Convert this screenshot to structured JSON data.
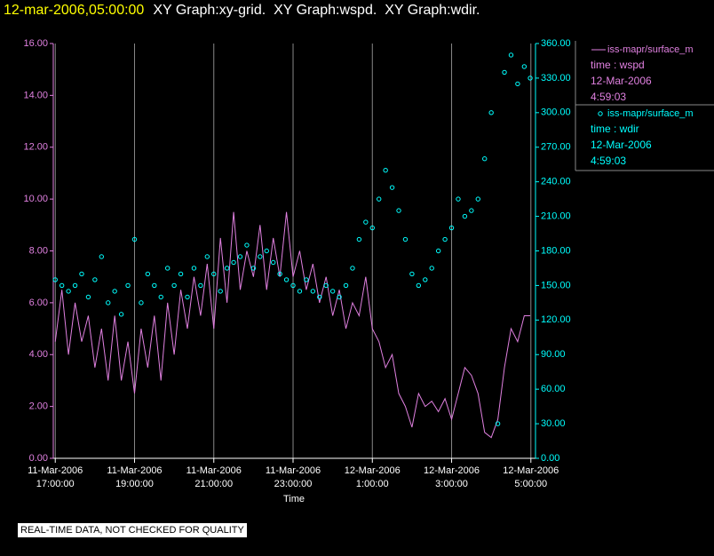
{
  "chart_data": {
    "type": "line-scatter",
    "timestamp": "12-mar-2006,05:00:00",
    "title": "XY Graph:xy-grid.  XY Graph:wspd.  XY Graph:wdir.",
    "x_label": "Time",
    "footnote": "REAL-TIME DATA, NOT CHECKED FOR QUALITY",
    "grid": true,
    "legend_position": "right",
    "xlim": [
      "2006-03-11T16:57:00",
      "2006-03-12T05:07:00"
    ],
    "xticks": [
      {
        "value": "2006-03-11T17:00:00",
        "label": "11-Mar-2006\n17:00:00"
      },
      {
        "value": "2006-03-11T19:00:00",
        "label": "11-Mar-2006\n19:00:00"
      },
      {
        "value": "2006-03-11T21:00:00",
        "label": "11-Mar-2006\n21:00:00"
      },
      {
        "value": "2006-03-11T23:00:00",
        "label": "11-Mar-2006\n23:00:00"
      },
      {
        "value": "2006-03-12T01:00:00",
        "label": "12-Mar-2006\n1:00:00"
      },
      {
        "value": "2006-03-12T03:00:00",
        "label": "12-Mar-2006\n3:00:00"
      },
      {
        "value": "2006-03-12T05:00:00",
        "label": "12-Mar-2006\n5:00:00"
      }
    ],
    "ylim": [
      0,
      16
    ],
    "yticks": [
      {
        "value": 0,
        "label": "0.00"
      },
      {
        "value": 2,
        "label": "2.00"
      },
      {
        "value": 4,
        "label": "4.00"
      },
      {
        "value": 6,
        "label": "6.00"
      },
      {
        "value": 8,
        "label": "8.00"
      },
      {
        "value": 10,
        "label": "10.00"
      },
      {
        "value": 12,
        "label": "12.00"
      },
      {
        "value": 14,
        "label": "14.00"
      },
      {
        "value": 16,
        "label": "16.00"
      }
    ],
    "y2lim": [
      0,
      360
    ],
    "y2ticks": [
      {
        "value": 0,
        "label": "0.00"
      },
      {
        "value": 30,
        "label": "30.00"
      },
      {
        "value": 60,
        "label": "60.00"
      },
      {
        "value": 90,
        "label": "90.00"
      },
      {
        "value": 120,
        "label": "120.00"
      },
      {
        "value": 150,
        "label": "150.00"
      },
      {
        "value": 180,
        "label": "180.00"
      },
      {
        "value": 210,
        "label": "210.00"
      },
      {
        "value": 240,
        "label": "240.00"
      },
      {
        "value": 270,
        "label": "270.00"
      },
      {
        "value": 300,
        "label": "300.00"
      },
      {
        "value": 330,
        "label": "330.00"
      },
      {
        "value": 360,
        "label": "360.00"
      }
    ],
    "x": [
      "2006-03-11T17:00:00",
      "2006-03-11T17:10:00",
      "2006-03-11T17:20:00",
      "2006-03-11T17:30:00",
      "2006-03-11T17:40:00",
      "2006-03-11T17:50:00",
      "2006-03-11T18:00:00",
      "2006-03-11T18:10:00",
      "2006-03-11T18:20:00",
      "2006-03-11T18:30:00",
      "2006-03-11T18:40:00",
      "2006-03-11T18:50:00",
      "2006-03-11T19:00:00",
      "2006-03-11T19:10:00",
      "2006-03-11T19:20:00",
      "2006-03-11T19:30:00",
      "2006-03-11T19:40:00",
      "2006-03-11T19:50:00",
      "2006-03-11T20:00:00",
      "2006-03-11T20:10:00",
      "2006-03-11T20:20:00",
      "2006-03-11T20:30:00",
      "2006-03-11T20:40:00",
      "2006-03-11T20:50:00",
      "2006-03-11T21:00:00",
      "2006-03-11T21:10:00",
      "2006-03-11T21:20:00",
      "2006-03-11T21:30:00",
      "2006-03-11T21:40:00",
      "2006-03-11T21:50:00",
      "2006-03-11T22:00:00",
      "2006-03-11T22:10:00",
      "2006-03-11T22:20:00",
      "2006-03-11T22:30:00",
      "2006-03-11T22:40:00",
      "2006-03-11T22:50:00",
      "2006-03-11T23:00:00",
      "2006-03-11T23:10:00",
      "2006-03-11T23:20:00",
      "2006-03-11T23:30:00",
      "2006-03-11T23:40:00",
      "2006-03-11T23:50:00",
      "2006-03-12T00:00:00",
      "2006-03-12T00:10:00",
      "2006-03-12T00:20:00",
      "2006-03-12T00:30:00",
      "2006-03-12T00:40:00",
      "2006-03-12T00:50:00",
      "2006-03-12T01:00:00",
      "2006-03-12T01:10:00",
      "2006-03-12T01:20:00",
      "2006-03-12T01:30:00",
      "2006-03-12T01:40:00",
      "2006-03-12T01:50:00",
      "2006-03-12T02:00:00",
      "2006-03-12T02:10:00",
      "2006-03-12T02:20:00",
      "2006-03-12T02:30:00",
      "2006-03-12T02:40:00",
      "2006-03-12T02:50:00",
      "2006-03-12T03:00:00",
      "2006-03-12T03:10:00",
      "2006-03-12T03:20:00",
      "2006-03-12T03:30:00",
      "2006-03-12T03:40:00",
      "2006-03-12T03:50:00",
      "2006-03-12T04:00:00",
      "2006-03-12T04:10:00",
      "2006-03-12T04:20:00",
      "2006-03-12T04:30:00",
      "2006-03-12T04:40:00",
      "2006-03-12T04:50:00",
      "2006-03-12T04:59:00"
    ],
    "series": [
      {
        "name": "iss-mapr/surface_m",
        "legend_lines": [
          "time : wspd",
          "12-Mar-2006",
          "4:59:03"
        ],
        "color": "#e080e0",
        "style": "line",
        "values": [
          4.5,
          6.5,
          4.0,
          6.0,
          4.5,
          5.5,
          3.5,
          5.0,
          3.0,
          5.5,
          3.0,
          4.5,
          2.5,
          5.0,
          3.5,
          5.5,
          3.0,
          6.0,
          4.0,
          6.5,
          5.0,
          7.0,
          5.5,
          7.5,
          5.0,
          8.5,
          6.0,
          9.5,
          6.5,
          8.0,
          7.0,
          9.0,
          6.5,
          8.5,
          7.0,
          9.5,
          7.0,
          8.0,
          6.5,
          7.5,
          6.0,
          7.0,
          5.5,
          6.5,
          5.0,
          6.0,
          5.5,
          7.0,
          5.0,
          4.5,
          3.5,
          4.0,
          2.5,
          2.0,
          1.2,
          2.5,
          2.0,
          2.2,
          1.8,
          2.3,
          1.5,
          2.5,
          3.5,
          3.2,
          2.5,
          1.0,
          0.8,
          1.5,
          3.5,
          5.0,
          4.5,
          5.5,
          5.5
        ]
      },
      {
        "name": "iss-mapr/surface_m",
        "legend_lines": [
          "time : wdir",
          "12-Mar-2006",
          "4:59:03"
        ],
        "color": "#00ffff",
        "style": "scatter",
        "axis": "y2",
        "values": [
          155,
          150,
          145,
          150,
          160,
          140,
          155,
          175,
          135,
          145,
          125,
          150,
          190,
          135,
          160,
          150,
          140,
          165,
          150,
          160,
          140,
          165,
          150,
          175,
          160,
          145,
          165,
          170,
          175,
          185,
          165,
          175,
          180,
          170,
          160,
          155,
          150,
          145,
          155,
          145,
          140,
          150,
          145,
          140,
          150,
          165,
          190,
          205,
          200,
          225,
          250,
          235,
          215,
          190,
          160,
          150,
          155,
          165,
          180,
          190,
          200,
          225,
          210,
          215,
          225,
          260,
          300,
          30,
          335,
          350,
          325,
          340,
          330
        ]
      }
    ]
  }
}
